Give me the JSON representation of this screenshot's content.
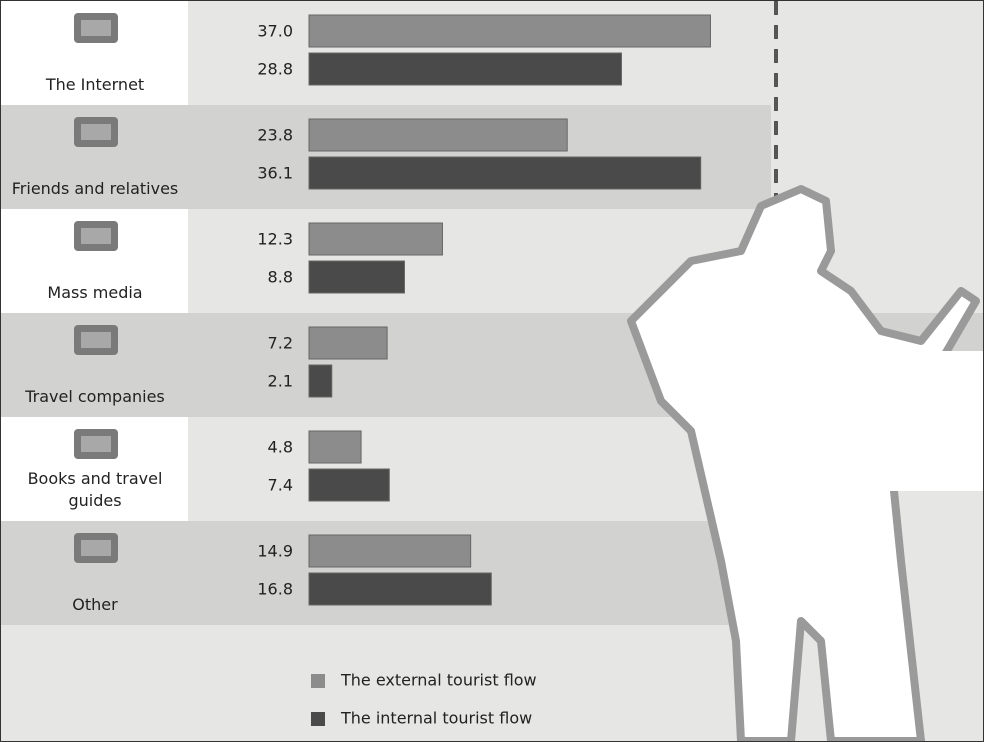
{
  "chart_data": {
    "type": "bar",
    "orientation": "horizontal",
    "categories": [
      "The Internet",
      "Friends and relatives",
      "Mass media",
      "Travel companies",
      "Books and travel guides",
      "Other"
    ],
    "series": [
      {
        "name": "The external tourist flow",
        "color": "#8c8c8c",
        "values": [
          37.0,
          23.8,
          12.3,
          7.2,
          4.8,
          14.9
        ],
        "value_labels": [
          "37.0",
          "23.8",
          "12.3",
          "7.2",
          "4.8",
          "14.9"
        ]
      },
      {
        "name": "The internal tourist flow",
        "color": "#4a4a4a",
        "values": [
          28.8,
          36.1,
          8.8,
          2.1,
          7.4,
          16.8
        ],
        "value_labels": [
          "28.8",
          "36.1",
          "8.8",
          "2.1",
          "7.4",
          "16.8"
        ]
      }
    ],
    "xlim": [
      0,
      40
    ]
  }
}
